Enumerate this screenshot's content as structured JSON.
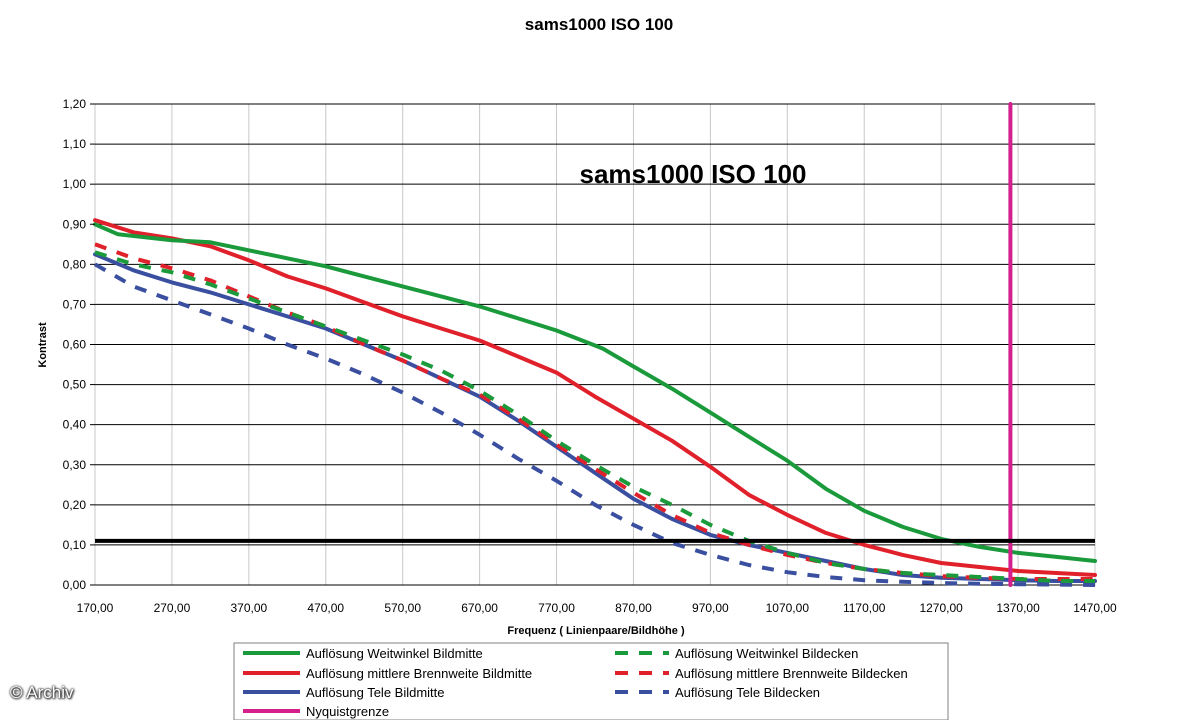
{
  "chart_data": {
    "type": "line",
    "title": "sams1000 ISO 100",
    "inner_title": "sams1000 ISO 100",
    "xlabel": "Frequenz ( Linienpaare/Bildhöhe )",
    "ylabel": "Kontrast",
    "xlim": [
      170,
      1470
    ],
    "ylim": [
      0,
      1.2
    ],
    "x_ticks": [
      "170,00",
      "270,00",
      "370,00",
      "470,00",
      "570,00",
      "670,00",
      "770,00",
      "870,00",
      "970,00",
      "1070,00",
      "1170,00",
      "1270,00",
      "1370,00",
      "1470,00"
    ],
    "y_ticks": [
      "0,00",
      "0,10",
      "0,20",
      "0,30",
      "0,40",
      "0,50",
      "0,60",
      "0,70",
      "0,80",
      "0,90",
      "1,00",
      "1,10",
      "1,20"
    ],
    "grid": true,
    "legend_position": "bottom",
    "threshold_line": {
      "y": 0.11,
      "color": "#000000"
    },
    "series": [
      {
        "name": "Auflösung Weitwinkel Bildmitte",
        "color": "#1a9a3a",
        "style": "solid",
        "points": [
          [
            170,
            0.9
          ],
          [
            200,
            0.875
          ],
          [
            270,
            0.86
          ],
          [
            320,
            0.855
          ],
          [
            370,
            0.835
          ],
          [
            420,
            0.815
          ],
          [
            470,
            0.795
          ],
          [
            520,
            0.77
          ],
          [
            570,
            0.745
          ],
          [
            620,
            0.72
          ],
          [
            670,
            0.695
          ],
          [
            720,
            0.665
          ],
          [
            770,
            0.635
          ],
          [
            830,
            0.59
          ],
          [
            870,
            0.545
          ],
          [
            920,
            0.49
          ],
          [
            970,
            0.43
          ],
          [
            1020,
            0.37
          ],
          [
            1070,
            0.31
          ],
          [
            1120,
            0.24
          ],
          [
            1170,
            0.185
          ],
          [
            1220,
            0.145
          ],
          [
            1270,
            0.115
          ],
          [
            1320,
            0.095
          ],
          [
            1370,
            0.08
          ],
          [
            1420,
            0.07
          ],
          [
            1470,
            0.06
          ]
        ]
      },
      {
        "name": "Auflösung Weitwinkel Bildecken",
        "color": "#1a9a3a",
        "style": "dashed",
        "points": [
          [
            170,
            0.83
          ],
          [
            220,
            0.8
          ],
          [
            270,
            0.78
          ],
          [
            320,
            0.75
          ],
          [
            370,
            0.715
          ],
          [
            420,
            0.68
          ],
          [
            470,
            0.645
          ],
          [
            520,
            0.61
          ],
          [
            570,
            0.575
          ],
          [
            620,
            0.535
          ],
          [
            670,
            0.485
          ],
          [
            720,
            0.425
          ],
          [
            770,
            0.36
          ],
          [
            820,
            0.3
          ],
          [
            870,
            0.245
          ],
          [
            920,
            0.2
          ],
          [
            970,
            0.15
          ],
          [
            1020,
            0.11
          ],
          [
            1070,
            0.08
          ],
          [
            1120,
            0.055
          ],
          [
            1170,
            0.04
          ],
          [
            1220,
            0.03
          ],
          [
            1270,
            0.025
          ],
          [
            1320,
            0.02
          ],
          [
            1370,
            0.015
          ],
          [
            1420,
            0.01
          ],
          [
            1470,
            0.01
          ]
        ]
      },
      {
        "name": "Auflösung mittlere Brennweite Bildmitte",
        "color": "#e0202a",
        "style": "solid",
        "points": [
          [
            170,
            0.91
          ],
          [
            220,
            0.88
          ],
          [
            270,
            0.865
          ],
          [
            320,
            0.845
          ],
          [
            370,
            0.81
          ],
          [
            420,
            0.77
          ],
          [
            470,
            0.74
          ],
          [
            520,
            0.705
          ],
          [
            570,
            0.67
          ],
          [
            620,
            0.64
          ],
          [
            670,
            0.61
          ],
          [
            720,
            0.57
          ],
          [
            770,
            0.53
          ],
          [
            820,
            0.47
          ],
          [
            870,
            0.415
          ],
          [
            920,
            0.36
          ],
          [
            970,
            0.295
          ],
          [
            1020,
            0.225
          ],
          [
            1070,
            0.175
          ],
          [
            1120,
            0.13
          ],
          [
            1170,
            0.1
          ],
          [
            1220,
            0.075
          ],
          [
            1270,
            0.055
          ],
          [
            1320,
            0.045
          ],
          [
            1370,
            0.035
          ],
          [
            1420,
            0.03
          ],
          [
            1470,
            0.025
          ]
        ]
      },
      {
        "name": "Auflösung mittlere Brennweite Bildecken",
        "color": "#e0202a",
        "style": "dashed",
        "points": [
          [
            170,
            0.85
          ],
          [
            220,
            0.815
          ],
          [
            270,
            0.79
          ],
          [
            320,
            0.76
          ],
          [
            370,
            0.72
          ],
          [
            420,
            0.68
          ],
          [
            470,
            0.645
          ],
          [
            520,
            0.6
          ],
          [
            570,
            0.56
          ],
          [
            620,
            0.515
          ],
          [
            670,
            0.475
          ],
          [
            720,
            0.415
          ],
          [
            770,
            0.35
          ],
          [
            820,
            0.29
          ],
          [
            870,
            0.23
          ],
          [
            920,
            0.175
          ],
          [
            970,
            0.13
          ],
          [
            1020,
            0.1
          ],
          [
            1070,
            0.075
          ],
          [
            1120,
            0.055
          ],
          [
            1170,
            0.04
          ],
          [
            1220,
            0.03
          ],
          [
            1270,
            0.022
          ],
          [
            1320,
            0.018
          ],
          [
            1370,
            0.015
          ],
          [
            1420,
            0.015
          ],
          [
            1470,
            0.015
          ]
        ]
      },
      {
        "name": "Auflösung Tele Bildmitte",
        "color": "#3a4fa0",
        "style": "solid",
        "points": [
          [
            170,
            0.825
          ],
          [
            220,
            0.785
          ],
          [
            270,
            0.755
          ],
          [
            320,
            0.73
          ],
          [
            370,
            0.7
          ],
          [
            420,
            0.67
          ],
          [
            470,
            0.64
          ],
          [
            520,
            0.6
          ],
          [
            570,
            0.56
          ],
          [
            620,
            0.515
          ],
          [
            670,
            0.47
          ],
          [
            720,
            0.41
          ],
          [
            770,
            0.345
          ],
          [
            820,
            0.28
          ],
          [
            870,
            0.215
          ],
          [
            920,
            0.165
          ],
          [
            970,
            0.125
          ],
          [
            1020,
            0.1
          ],
          [
            1070,
            0.08
          ],
          [
            1120,
            0.06
          ],
          [
            1170,
            0.04
          ],
          [
            1220,
            0.025
          ],
          [
            1270,
            0.018
          ],
          [
            1320,
            0.015
          ],
          [
            1370,
            0.012
          ],
          [
            1420,
            0.01
          ],
          [
            1470,
            0.01
          ]
        ]
      },
      {
        "name": "Auflösung Tele Bildecken",
        "color": "#3a4fa0",
        "style": "dashed",
        "points": [
          [
            170,
            0.8
          ],
          [
            220,
            0.745
          ],
          [
            270,
            0.71
          ],
          [
            320,
            0.675
          ],
          [
            370,
            0.64
          ],
          [
            420,
            0.6
          ],
          [
            470,
            0.565
          ],
          [
            520,
            0.525
          ],
          [
            570,
            0.48
          ],
          [
            620,
            0.43
          ],
          [
            670,
            0.375
          ],
          [
            720,
            0.315
          ],
          [
            770,
            0.26
          ],
          [
            820,
            0.2
          ],
          [
            870,
            0.15
          ],
          [
            920,
            0.105
          ],
          [
            970,
            0.075
          ],
          [
            1020,
            0.05
          ],
          [
            1070,
            0.032
          ],
          [
            1120,
            0.02
          ],
          [
            1170,
            0.012
          ],
          [
            1220,
            0.008
          ],
          [
            1270,
            0.005
          ],
          [
            1320,
            0.003
          ],
          [
            1370,
            0.002
          ],
          [
            1420,
            0.001
          ],
          [
            1470,
            0.0
          ]
        ]
      },
      {
        "name": "Nyquistgrenze",
        "color": "#d4208c",
        "style": "solid",
        "points": [
          [
            1360,
            0.0
          ],
          [
            1360,
            1.2
          ]
        ]
      }
    ],
    "legend_order": [
      "Auflösung Weitwinkel Bildmitte",
      "Auflösung Weitwinkel Bildecken",
      "Auflösung mittlere Brennweite Bildmitte",
      "Auflösung mittlere Brennweite Bildecken",
      "Auflösung Tele Bildmitte",
      "Auflösung Tele Bildecken",
      "Nyquistgrenze"
    ]
  },
  "watermark": "© Archiv"
}
